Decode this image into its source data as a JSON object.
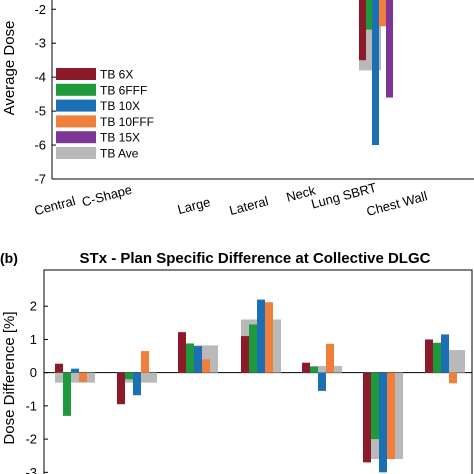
{
  "colors": {
    "TB 6X": "#8b1a2b",
    "TB 6FFF": "#1e9a3c",
    "TB 10X": "#1a6fb5",
    "TB 10FFF": "#f07f3c",
    "TB 15X": "#7e3596",
    "TB Ave": "#b9b9b9"
  },
  "chart_data": [
    {
      "type": "bar",
      "panel": "a",
      "title": "",
      "xlabel": "",
      "ylabel": "Average Dose",
      "ylim": [
        -7,
        -1.55
      ],
      "yticks": [
        -2,
        -3,
        -4,
        -5,
        -6,
        -7
      ],
      "categories": [
        "Central",
        "C-Shape",
        "Large",
        "Lateral",
        "Neck",
        "Lung SBRT",
        "Chest Wall"
      ],
      "legend": {
        "placement": "left",
        "entries": [
          "TB 6X",
          "TB 6FFF",
          "TB 10X",
          "TB 10FFF",
          "TB 15X",
          "TB Ave"
        ]
      },
      "series": [
        {
          "name": "TB 6X",
          "values": [
            null,
            null,
            null,
            null,
            null,
            -3.5,
            null
          ]
        },
        {
          "name": "TB 6FFF",
          "values": [
            null,
            null,
            null,
            null,
            null,
            -2.6,
            null
          ]
        },
        {
          "name": "TB 10X",
          "values": [
            null,
            null,
            null,
            null,
            null,
            -6.0,
            null
          ]
        },
        {
          "name": "TB 10FFF",
          "values": [
            null,
            null,
            null,
            null,
            null,
            -2.5,
            null
          ]
        },
        {
          "name": "TB 15X",
          "values": [
            null,
            null,
            null,
            null,
            null,
            -4.6,
            null
          ]
        },
        {
          "name": "TB Ave",
          "values": [
            null,
            null,
            null,
            null,
            null,
            -3.8,
            null
          ]
        }
      ]
    },
    {
      "type": "bar",
      "panel": "b",
      "panel_label": "(b)",
      "title": "STx - Plan Specific Difference at Collective DLGC",
      "xlabel": "",
      "ylabel": "Dose Difference [%]",
      "ylim": [
        -3,
        3
      ],
      "yticks": [
        2,
        1,
        0,
        -1,
        -2,
        -3
      ],
      "categories": [
        "Central",
        "C-Shape",
        "Large",
        "Lateral",
        "Neck",
        "Lung SBRT",
        "Chest Wall"
      ],
      "series": [
        {
          "name": "TB 6X",
          "values": [
            0.27,
            -0.95,
            1.22,
            1.1,
            0.3,
            -2.7,
            1.0
          ]
        },
        {
          "name": "TB 6FFF",
          "values": [
            -1.3,
            -0.2,
            0.88,
            1.45,
            0.18,
            -2.0,
            0.9
          ]
        },
        {
          "name": "TB 10X",
          "values": [
            0.12,
            -0.68,
            0.8,
            2.2,
            -0.55,
            -3.0,
            1.15
          ]
        },
        {
          "name": "TB 10FFF",
          "values": [
            -0.28,
            0.65,
            0.4,
            2.12,
            0.87,
            -2.6,
            -0.32
          ]
        },
        {
          "name": "TB Ave",
          "values": [
            -0.3,
            -0.3,
            0.82,
            1.6,
            0.2,
            -2.6,
            0.68
          ]
        }
      ]
    }
  ]
}
